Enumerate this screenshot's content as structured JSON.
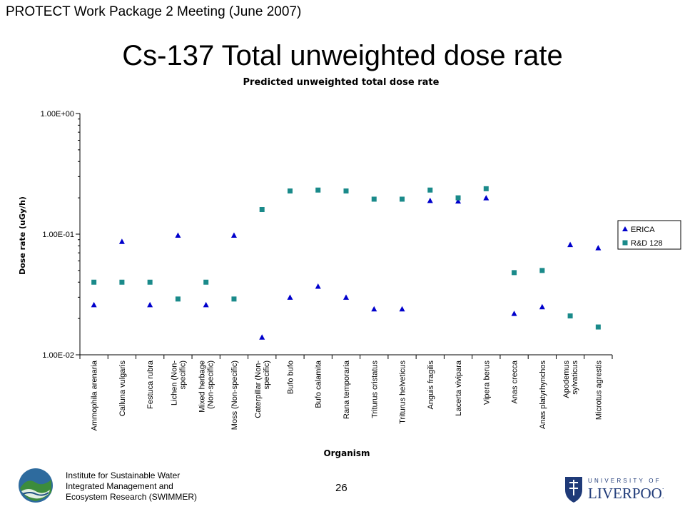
{
  "header": {
    "meeting": "PROTECT Work Package 2 Meeting (June 2007)"
  },
  "slide": {
    "title": "Cs-137 Total unweighted dose rate"
  },
  "chart_data": {
    "type": "scatter",
    "title": "Predicted unweighted total dose rate",
    "xlabel": "Organism",
    "ylabel": "Dose rate (uGy/h)",
    "yscale": "log",
    "ylim": [
      0.01,
      1
    ],
    "yticks": [
      "1.00E-02",
      "1.00E-01",
      "1.00E+00"
    ],
    "legend_position": "right",
    "categories": [
      "Ammophila arenaria",
      "Calluna vulgaris",
      "Festuca rubra",
      "Lichen (Non-|specific)",
      "Mixed herbage|(Non-specific)",
      "Moss (Non-specific)",
      "Caterpillar (Non-|specific)",
      "Bufo bufo",
      "Bufo calamita",
      "Rana temporaria",
      "Triturus cristatus",
      "Triturus helveticus",
      "Anguis fragilis",
      "Lacerta vivipara",
      "Vipera berus",
      "Anas crecca",
      "Anas platyrhynchos",
      "Apodemus|sylvaticus",
      "Microtus agrestis"
    ],
    "series": [
      {
        "name": "ERICA",
        "marker": "triangle",
        "color": "#0000cc",
        "values": [
          0.026,
          0.087,
          0.026,
          0.098,
          0.026,
          0.098,
          0.014,
          0.03,
          0.037,
          0.03,
          0.024,
          0.024,
          0.19,
          0.188,
          0.2,
          0.022,
          0.025,
          0.082,
          0.077
        ]
      },
      {
        "name": "R&D 128",
        "marker": "square",
        "color": "#1a8a8a",
        "values": [
          0.04,
          0.04,
          0.04,
          0.029,
          0.04,
          0.029,
          0.16,
          0.228,
          0.232,
          0.228,
          0.195,
          0.195,
          0.232,
          0.2,
          0.238,
          0.048,
          0.05,
          0.021,
          0.017
        ]
      }
    ]
  },
  "footer": {
    "org_line1": "Institute for Sustainable Water",
    "org_line2": "Integrated Management and",
    "org_line3": "Ecosystem Research (SWIMMER)",
    "page_number": "26",
    "university_top": "UNIVERSITY OF",
    "university_name": "LIVERPOOL",
    "logo_icon": "swimmer-wave-logo",
    "crest_icon": "liverpool-crest-icon"
  }
}
